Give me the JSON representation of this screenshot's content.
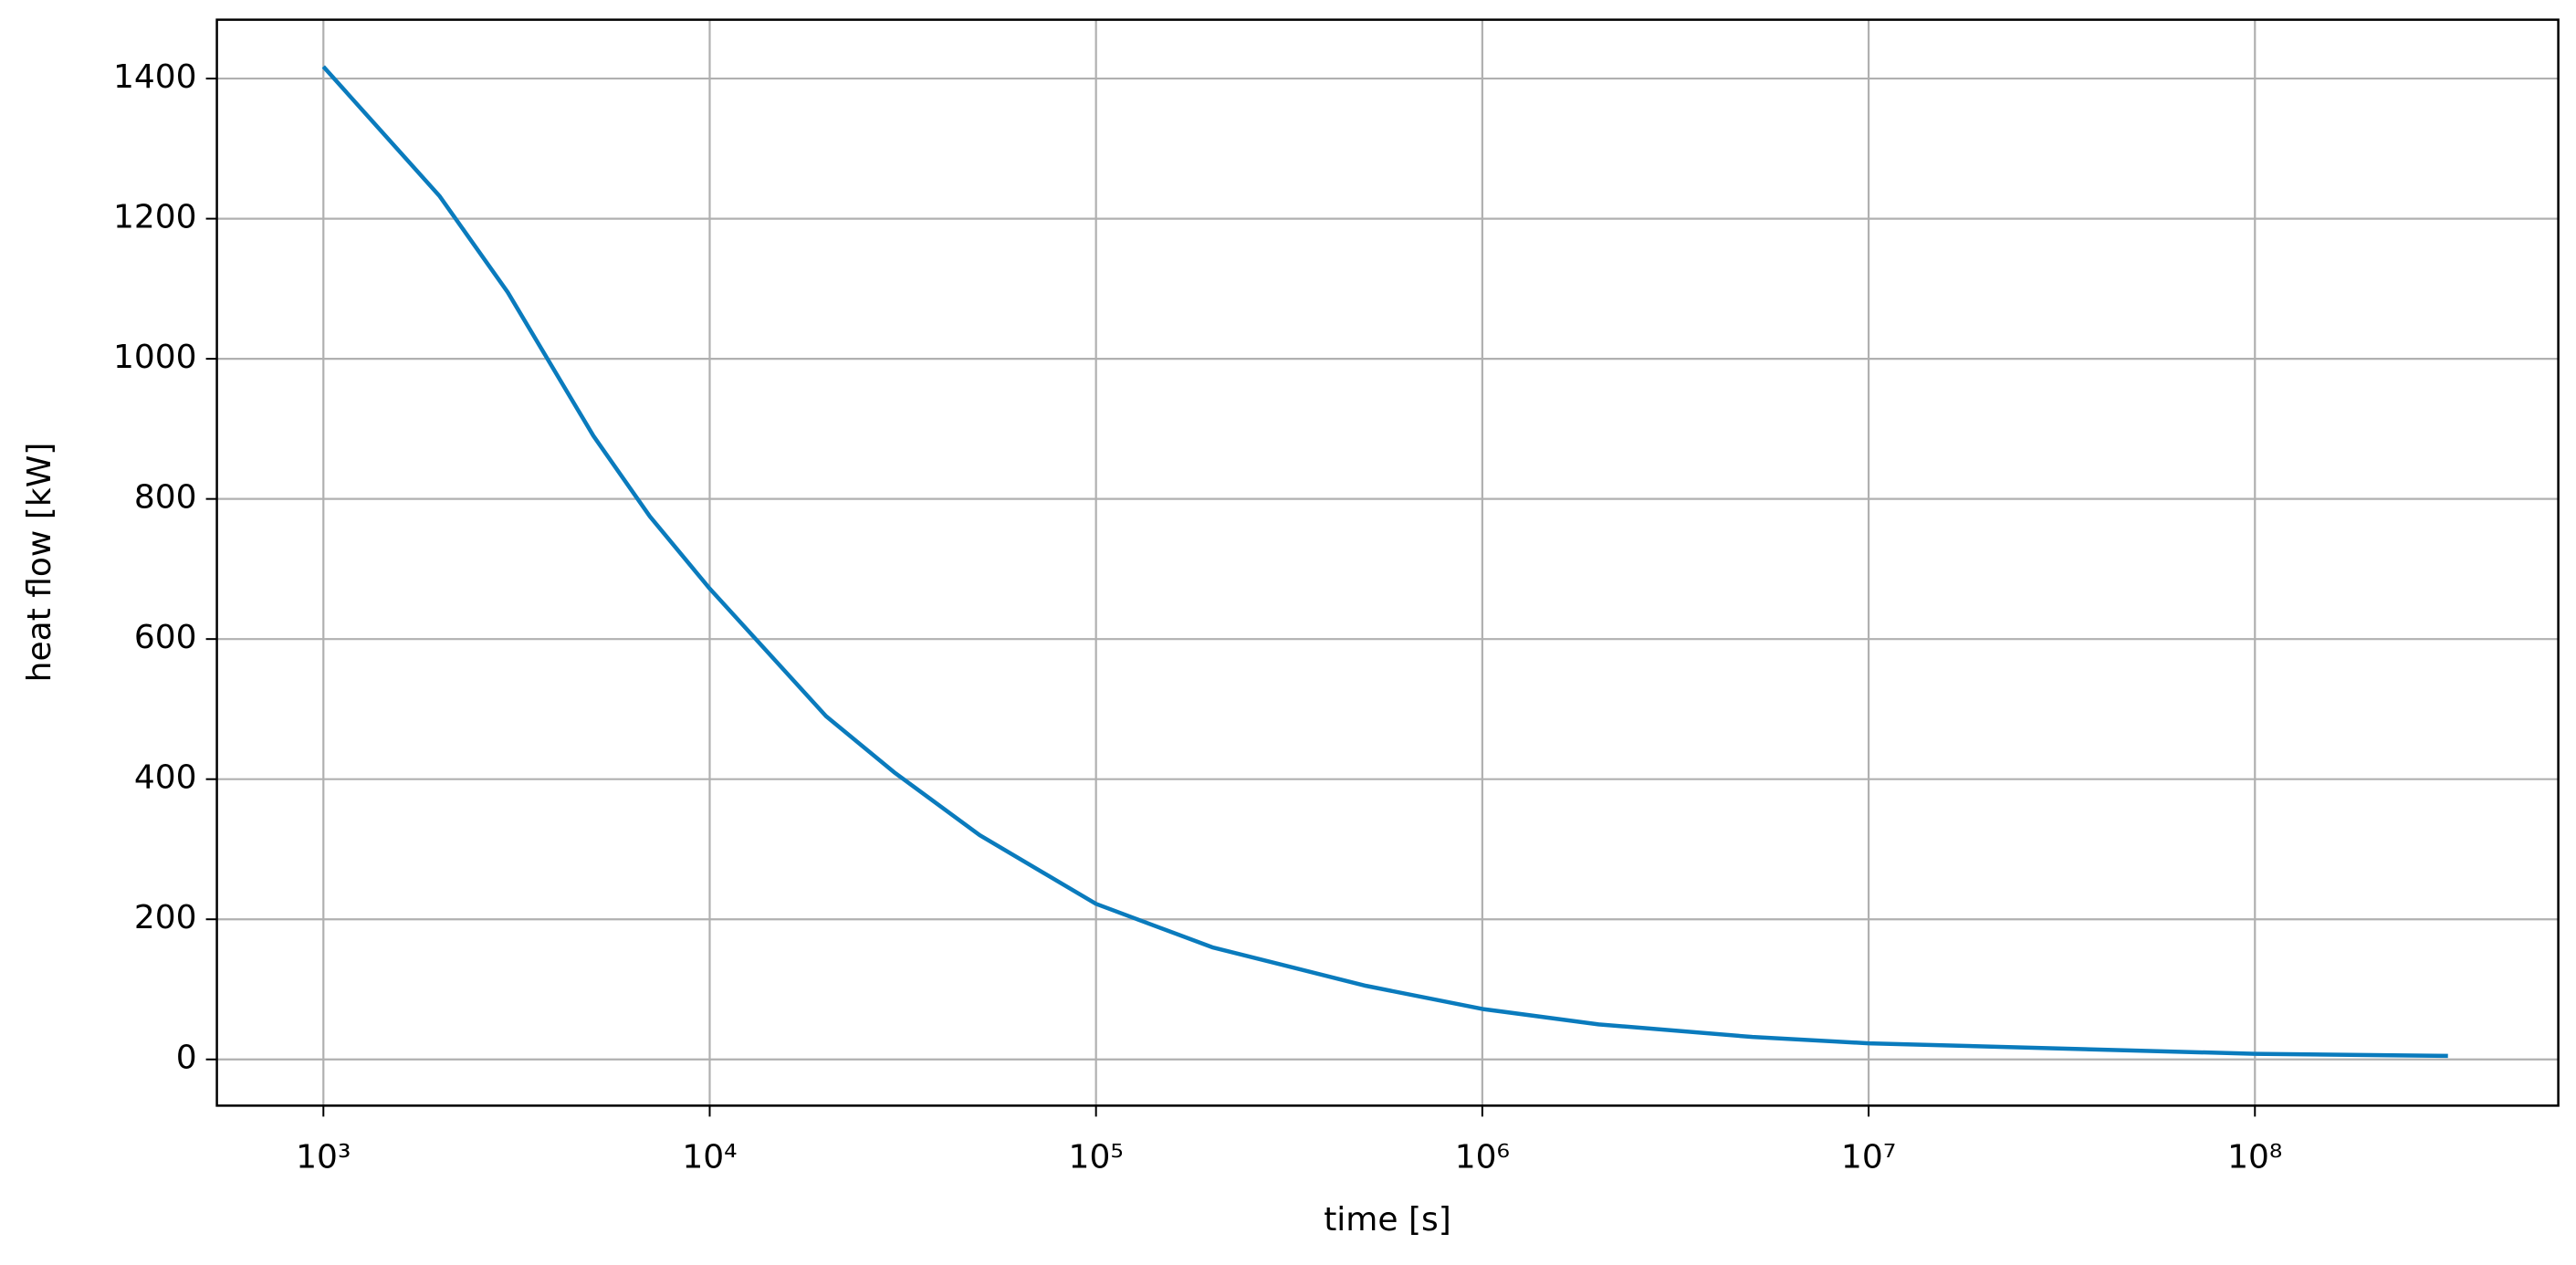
{
  "chart_data": {
    "type": "line",
    "xlabel": "time [s]",
    "ylabel": "heat flow [kW]",
    "xscale": "log",
    "grid": true,
    "color": "#0a7bbd",
    "x": [
      1000,
      2000,
      3000,
      5000,
      7000,
      10000,
      20000,
      30000,
      50000,
      100000,
      200000,
      500000,
      1000000,
      2000000,
      5000000,
      10000000,
      100000000,
      316000000
    ],
    "values": [
      1417,
      1232,
      1095,
      890,
      775,
      672,
      490,
      410,
      320,
      222,
      160,
      105,
      72,
      50,
      32,
      23,
      8,
      5
    ],
    "xlim": [
      530,
      610000000
    ],
    "xticks": [
      {
        "value": 1000,
        "label": "10³"
      },
      {
        "value": 10000,
        "label": "10⁴"
      },
      {
        "value": 100000,
        "label": "10⁵"
      },
      {
        "value": 1000000,
        "label": "10⁶"
      },
      {
        "value": 10000000,
        "label": "10⁷"
      },
      {
        "value": 100000000,
        "label": "10⁸"
      }
    ],
    "ylim": [
      -66,
      1484
    ],
    "yticks": [
      0,
      200,
      400,
      600,
      800,
      1000,
      1200,
      1400
    ]
  }
}
